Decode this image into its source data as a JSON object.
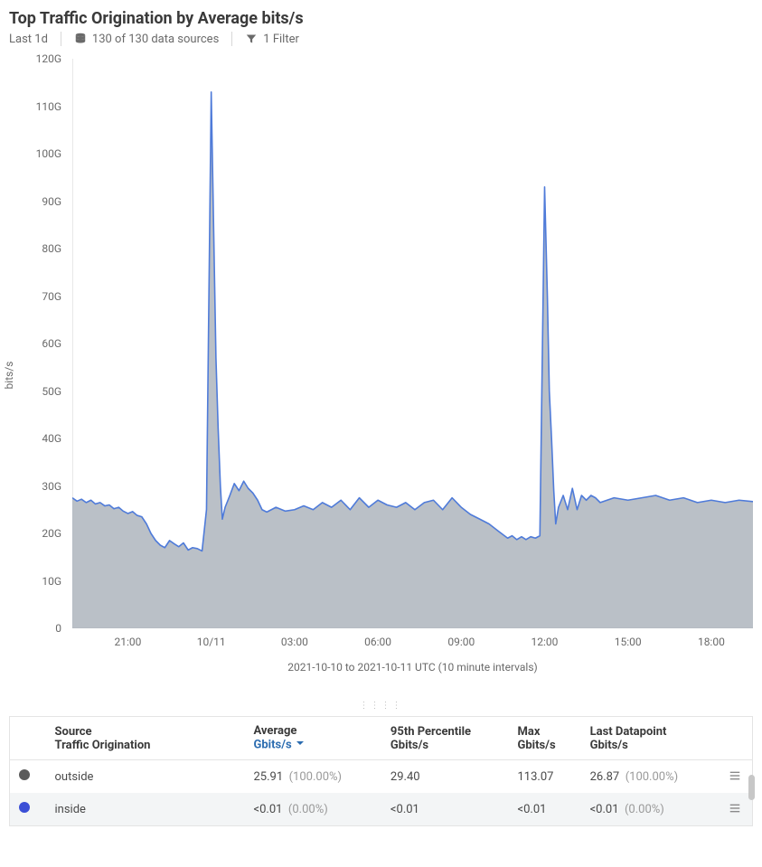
{
  "header": {
    "title": "Top Traffic Origination by Average bits/s",
    "range": "Last 1d",
    "sources": "130 of 130 data sources",
    "filter": "1 Filter"
  },
  "chart": {
    "type": "area",
    "y_axis_title": "bits/s",
    "x_caption": "2021-10-10 to 2021-10-11 UTC (10 minute intervals)",
    "colors": {
      "line": "#4f7bd9",
      "fill": "#aeb5bd",
      "fill_opacity": 0.85,
      "axis": "#cfcfcf",
      "tick_text": "#6a6a6a",
      "background": "#ffffff"
    },
    "ylim": [
      0,
      120
    ],
    "y_tick_step": 10,
    "y_tick_suffix": "G",
    "x_start_hour": 19.0,
    "x_end_hour": 43.5,
    "x_ticks": [
      {
        "hour": 21,
        "label": "21:00"
      },
      {
        "hour": 24,
        "label": "10/11"
      },
      {
        "hour": 27,
        "label": "03:00"
      },
      {
        "hour": 30,
        "label": "06:00"
      },
      {
        "hour": 33,
        "label": "09:00"
      },
      {
        "hour": 36,
        "label": "12:00"
      },
      {
        "hour": 39,
        "label": "15:00"
      },
      {
        "hour": 42,
        "label": "18:00"
      }
    ],
    "series": [
      {
        "hours": [
          19.0,
          19.17,
          19.33,
          19.5,
          19.67,
          19.83,
          20.0,
          20.17,
          20.33,
          20.5,
          20.67,
          20.83,
          21.0,
          21.17,
          21.33,
          21.5,
          21.67,
          21.83,
          22.0,
          22.17,
          22.33,
          22.5,
          22.67,
          22.83,
          23.0,
          23.17,
          23.33,
          23.5,
          23.67,
          23.83,
          24.0,
          24.1,
          24.17,
          24.25,
          24.33,
          24.4,
          24.5,
          24.67,
          24.83,
          25.0,
          25.17,
          25.33,
          25.5,
          25.67,
          25.83,
          26.0,
          26.33,
          26.67,
          27.0,
          27.33,
          27.67,
          28.0,
          28.33,
          28.67,
          29.0,
          29.33,
          29.67,
          30.0,
          30.33,
          30.67,
          31.0,
          31.33,
          31.67,
          32.0,
          32.33,
          32.67,
          33.0,
          33.33,
          33.67,
          34.0,
          34.33,
          34.67,
          34.83,
          35.0,
          35.17,
          35.33,
          35.5,
          35.67,
          35.83,
          36.0,
          36.1,
          36.17,
          36.25,
          36.33,
          36.4,
          36.5,
          36.67,
          36.83,
          37.0,
          37.17,
          37.33,
          37.5,
          37.67,
          37.83,
          38.0,
          38.5,
          39.0,
          39.5,
          40.0,
          40.5,
          41.0,
          41.5,
          42.0,
          42.5,
          43.0,
          43.5
        ],
        "values": [
          27.5,
          26.8,
          27.2,
          26.5,
          27.0,
          26.2,
          26.5,
          25.8,
          26.0,
          25.2,
          25.5,
          24.7,
          24.2,
          24.6,
          23.8,
          23.5,
          22.0,
          20.0,
          18.5,
          17.5,
          17.0,
          18.5,
          17.8,
          17.2,
          18.0,
          16.5,
          17.0,
          16.8,
          16.3,
          25.0,
          113.0,
          80.0,
          57.0,
          42.0,
          30.0,
          23.0,
          25.5,
          28.0,
          30.5,
          29.0,
          31.0,
          29.5,
          28.5,
          27.0,
          25.0,
          24.5,
          25.5,
          24.7,
          25.0,
          25.8,
          25.0,
          26.5,
          25.5,
          27.0,
          25.0,
          27.5,
          25.5,
          27.0,
          26.0,
          25.5,
          26.5,
          25.0,
          26.5,
          27.0,
          25.0,
          27.5,
          25.5,
          24.0,
          23.0,
          22.0,
          20.5,
          19.0,
          19.5,
          18.7,
          19.3,
          18.7,
          19.3,
          19.0,
          19.5,
          93.0,
          70.0,
          50.0,
          40.0,
          29.0,
          22.0,
          25.5,
          28.0,
          25.0,
          29.5,
          25.0,
          28.0,
          27.0,
          28.0,
          27.5,
          26.5,
          27.5,
          27.0,
          27.5,
          28.0,
          27.0,
          27.5,
          26.5,
          27.0,
          26.5,
          27.0,
          26.7
        ]
      }
    ]
  },
  "table": {
    "columns": {
      "source_h1": "Source",
      "source_h2": "Traffic Origination",
      "avg_h1": "Average",
      "avg_unit": "Gbits/s",
      "p95_h1": "95th Percentile",
      "p95_unit": "Gbits/s",
      "max_h1": "Max",
      "max_unit": "Gbits/s",
      "last_h1": "Last Datapoint",
      "last_unit": "Gbits/s"
    },
    "swatch_colors": [
      "#5b5b5b",
      "#3b4fd6"
    ],
    "rows": [
      {
        "source": "outside",
        "avg": "25.91",
        "avg_pct": "(100.00%)",
        "p95": "29.40",
        "max": "113.07",
        "last": "26.87",
        "last_pct": "(100.00%)"
      },
      {
        "source": "inside",
        "avg": "<0.01",
        "avg_pct": "(0.00%)",
        "p95": "<0.01",
        "max": "<0.01",
        "last": "<0.01",
        "last_pct": "(0.00%)"
      }
    ]
  }
}
